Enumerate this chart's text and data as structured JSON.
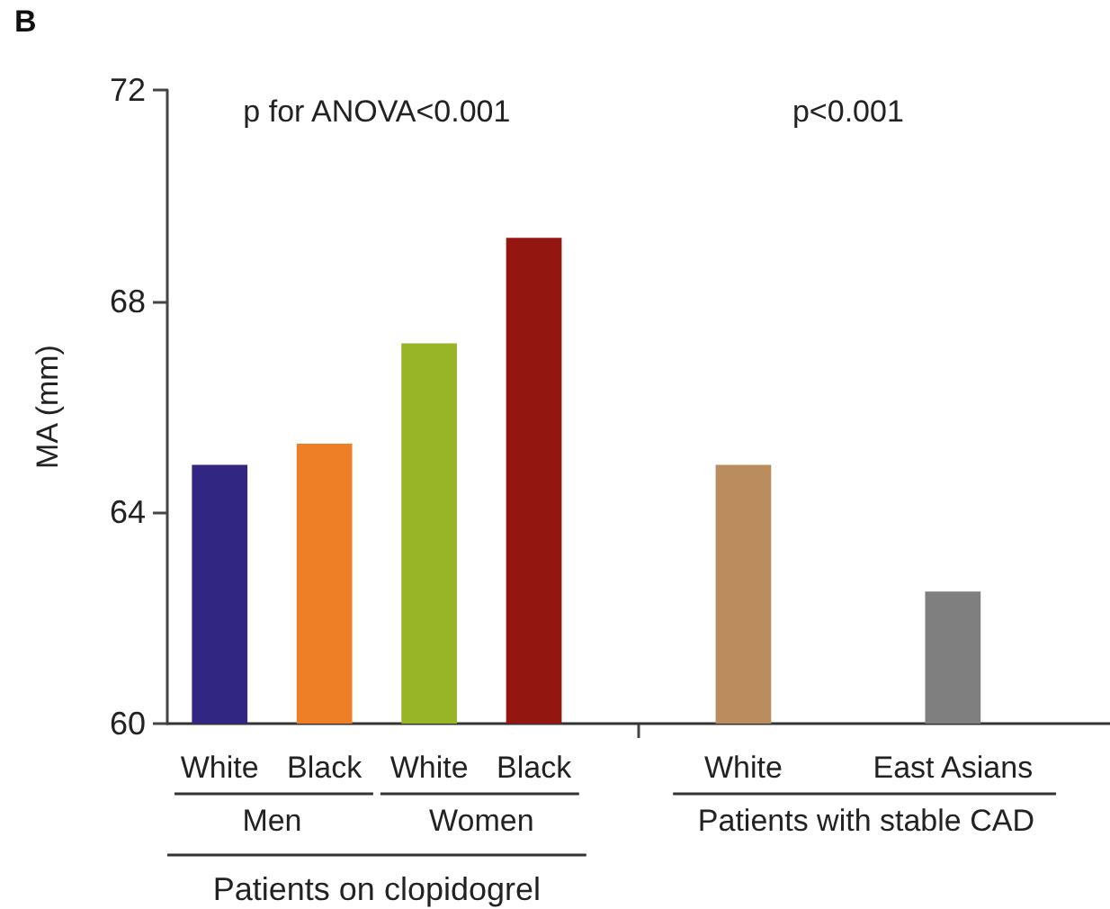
{
  "chart_data": {
    "type": "bar",
    "ylabel": "MA (mm)",
    "categories": [
      "White",
      "Black",
      "White",
      "Black",
      null,
      "White",
      null,
      "East Asians",
      null
    ],
    "values": [
      64.9,
      65.3,
      67.2,
      69.2,
      null,
      64.9,
      null,
      62.5,
      null
    ],
    "colors": [
      "#312782",
      "#ef7f27",
      "#97b526",
      "#931710",
      "#ffffff",
      "#bb8c5e",
      "#ffffff",
      "#7f7f7f",
      "#ffffff"
    ],
    "ylim": [
      60,
      72
    ],
    "yticks": [
      60,
      64,
      68,
      72
    ],
    "annotations": [
      "B",
      "p for ANOVA<0.001",
      "p<0.001",
      "Men",
      "Women",
      "Patients with stable CAD",
      "Patients on clopidogrel"
    ]
  }
}
